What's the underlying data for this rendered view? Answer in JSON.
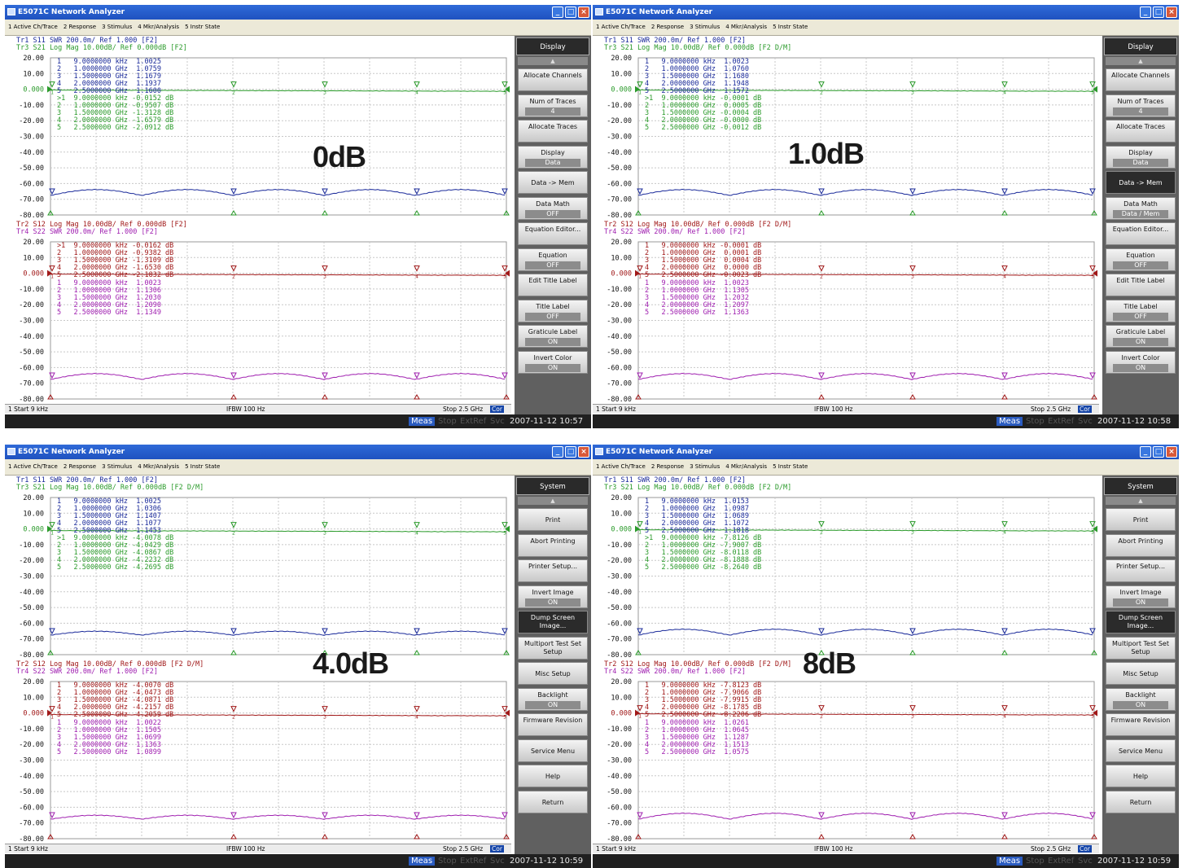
{
  "windows": [
    {
      "id": "w1",
      "title": "E5071C Network Analyzer",
      "menus": [
        "1 Active Ch/Trace",
        "2 Response",
        "3 Stimulus",
        "4 Mkr/Analysis",
        "5 Instr State"
      ],
      "big_label": "0dB",
      "header_top": [
        "Tr1 S11 SWR 200.0m/ Ref 1.000 [F2]",
        "Tr3 S21 Log Mag 10.00dB/ Ref 0.000dB [F2]"
      ],
      "header_bottom": [
        "Tr2 S12 Log Mag 10.00dB/ Ref 0.000dB [F2]",
        "Tr4 S22 SWR 200.0m/ Ref 1.000 [F2]"
      ],
      "y_ticks_top": [
        "20.00",
        "10.00",
        "0.000",
        "-10.00",
        "-20.00",
        "-30.00",
        "-40.00",
        "-50.00",
        "-60.00",
        "-70.00",
        "-80.00"
      ],
      "y_ticks_bottom": [
        "20.00",
        "10.00",
        "0.000",
        "-10.00",
        "-20.00",
        "-30.00",
        "-40.00",
        "-50.00",
        "-60.00",
        "-70.00",
        "-80.00"
      ],
      "markers_top_blue": [
        "1   9.0000000 kHz  1.0025",
        "2   1.0000000 GHz  1.0759",
        "3   1.5000000 GHz  1.1679",
        "4   2.0000000 GHz  1.1937",
        "5   2.5000000 GHz  1.1600"
      ],
      "markers_top_green": [
        ">1  9.0000000 kHz -0.0152 dB",
        "2   1.0000000 GHz -0.9507 dB",
        "3   1.5000000 GHz -1.3128 dB",
        "4   2.0000000 GHz -1.6579 dB",
        "5   2.5000000 GHz -2.0912 dB"
      ],
      "markers_bottom_red": [
        ">1  9.0000000 kHz -0.0162 dB",
        "2   1.0000000 GHz -0.9382 dB",
        "3   1.5000000 GHz -1.3109 dB",
        "4   2.0000000 GHz -1.6530 dB",
        "5   2.5000000 GHz -2.1832 dB"
      ],
      "markers_bottom_magenta": [
        "1   9.0000000 kHz  1.0023",
        "2   1.0000000 GHz  1.1306",
        "3   1.5000000 GHz  1.2030",
        "4   2.0000000 GHz  1.2090",
        "5   2.5000000 GHz  1.1349"
      ],
      "sidebar_title": "Display",
      "sidebar_buttons": [
        {
          "label": "Allocate Channels",
          "value": ""
        },
        {
          "label": "Num of Traces",
          "value": "4"
        },
        {
          "label": "Allocate Traces",
          "value": ""
        },
        {
          "label": "Display",
          "value": "Data"
        },
        {
          "label": "Data -> Mem",
          "value": ""
        },
        {
          "label": "Data Math",
          "value": "OFF"
        },
        {
          "label": "Equation Editor...",
          "value": ""
        },
        {
          "label": "Equation",
          "value": "OFF"
        },
        {
          "label": "Edit Title Label",
          "value": ""
        },
        {
          "label": "Title Label",
          "value": "OFF"
        },
        {
          "label": "Graticule Label",
          "value": "ON"
        },
        {
          "label": "Invert Color",
          "value": "ON"
        }
      ],
      "status": {
        "start": "1  Start 9 kHz",
        "ifbw": "IFBW 100 Hz",
        "stop": "Stop 2.5 GHz",
        "cor": "Cor"
      },
      "bottom": {
        "meas": "Meas",
        "stop": "Stop",
        "extref": "ExtRef",
        "svc": "Svc",
        "datetime": "2007-11-12 10:57"
      },
      "curve": "flat"
    },
    {
      "id": "w2",
      "title": "E5071C Network Analyzer",
      "menus": [
        "1 Active Ch/Trace",
        "2 Response",
        "3 Stimulus",
        "4 Mkr/Analysis",
        "5 Instr State"
      ],
      "big_label": "1.0dB",
      "header_top": [
        "Tr1 S11 SWR 200.0m/ Ref 1.000 [F2]",
        "Tr3 S21 Log Mag 10.00dB/ Ref 0.000dB [F2 D/M]"
      ],
      "header_bottom": [
        "Tr2 S12 Log Mag 10.00dB/ Ref 0.000dB [F2 D/M]",
        "Tr4 S22 SWR 200.0m/ Ref 1.000 [F2]"
      ],
      "y_ticks_top": [
        "20.00",
        "10.00",
        "0.000",
        "-10.00",
        "-20.00",
        "-30.00",
        "-40.00",
        "-50.00",
        "-60.00",
        "-70.00",
        "-80.00"
      ],
      "y_ticks_bottom": [
        "20.00",
        "10.00",
        "0.000",
        "-10.00",
        "-20.00",
        "-30.00",
        "-40.00",
        "-50.00",
        "-60.00",
        "-70.00",
        "-80.00"
      ],
      "markers_top_blue": [
        "1   9.0000000 kHz  1.0023",
        "2   1.0000000 GHz  1.0760",
        "3   1.5000000 GHz  1.1680",
        "4   2.0000000 GHz  1.1948",
        "5   2.5000000 GHz  1.1572"
      ],
      "markers_top_green": [
        ">1  9.0000000 kHz -0.0001 dB",
        "2   1.0000000 GHz  0.0005 dB",
        "3   1.5000000 GHz -0.0004 dB",
        "4   2.0000000 GHz -0.0000 dB",
        "5   2.5000000 GHz -0.0012 dB"
      ],
      "markers_bottom_red": [
        "1   9.0000000 kHz -0.0001 dB",
        "2   1.0000000 GHz  0.0001 dB",
        "3   1.5000000 GHz  0.0004 dB",
        "4   2.0000000 GHz  0.0000 dB",
        "5   2.5000000 GHz -0.0023 dB"
      ],
      "markers_bottom_magenta": [
        "1   9.0000000 kHz  1.0023",
        "2   1.0000000 GHz  1.1305",
        "3   1.5000000 GHz  1.2032",
        "4   2.0000000 GHz  1.2097",
        "5   2.5000000 GHz  1.1363"
      ],
      "sidebar_title": "Display",
      "sidebar_buttons": [
        {
          "label": "Allocate Channels",
          "value": ""
        },
        {
          "label": "Num of Traces",
          "value": "4"
        },
        {
          "label": "Allocate Traces",
          "value": ""
        },
        {
          "label": "Display",
          "value": "Data"
        },
        {
          "label": "Data -> Mem",
          "value": ""
        },
        {
          "label": "Data Math",
          "value": "Data / Mem"
        },
        {
          "label": "Equation Editor...",
          "value": ""
        },
        {
          "label": "Equation",
          "value": "OFF"
        },
        {
          "label": "Edit Title Label",
          "value": ""
        },
        {
          "label": "Title Label",
          "value": "OFF"
        },
        {
          "label": "Graticule Label",
          "value": "ON"
        },
        {
          "label": "Invert Color",
          "value": "ON"
        }
      ],
      "status": {
        "start": "1  Start 9 kHz",
        "ifbw": "IFBW 100 Hz",
        "stop": "Stop 2.5 GHz",
        "cor": "Cor"
      },
      "bottom": {
        "meas": "Meas",
        "stop": "Stop",
        "extref": "ExtRef",
        "svc": "Svc",
        "datetime": "2007-11-12 10:58"
      },
      "curve": "flat"
    },
    {
      "id": "w3",
      "title": "E5071C Network Analyzer",
      "menus": [
        "1 Active Ch/Trace",
        "2 Response",
        "3 Stimulus",
        "4 Mkr/Analysis",
        "5 Instr State"
      ],
      "big_label": "4.0dB",
      "header_top": [
        "Tr1 S11 SWR 200.0m/ Ref 1.000 [F2]",
        "Tr3 S21 Log Mag 10.00dB/ Ref 0.000dB [F2 D/M]"
      ],
      "header_bottom": [
        "Tr2 S12 Log Mag 10.00dB/ Ref 0.000dB [F2 D/M]",
        "Tr4 S22 SWR 200.0m/ Ref 1.000 [F2]"
      ],
      "y_ticks_top": [
        "20.00",
        "10.00",
        "0.000",
        "-10.00",
        "-20.00",
        "-30.00",
        "-40.00",
        "-50.00",
        "-60.00",
        "-70.00",
        "-80.00"
      ],
      "y_ticks_bottom": [
        "20.00",
        "10.00",
        "0.000",
        "-10.00",
        "-20.00",
        "-30.00",
        "-40.00",
        "-50.00",
        "-60.00",
        "-70.00",
        "-80.00"
      ],
      "markers_top_blue": [
        "1   9.0000000 kHz  1.0025",
        "2   1.0000000 GHz  1.0306",
        "3   1.5000000 GHz  1.1407",
        "4   2.0000000 GHz  1.1077",
        "5   2.5000000 GHz  1.1453"
      ],
      "markers_top_green": [
        ">1  9.0000000 kHz -4.0078 dB",
        "2   1.0000000 GHz -4.0429 dB",
        "3   1.5000000 GHz -4.0867 dB",
        "4   2.0000000 GHz -4.2232 dB",
        "5   2.5000000 GHz -4.2695 dB"
      ],
      "markers_bottom_red": [
        "1   9.0000000 kHz -4.0070 dB",
        "2   1.0000000 GHz -4.0473 dB",
        "3   1.5000000 GHz -4.0871 dB",
        "4   2.0000000 GHz -4.2157 dB",
        "5   2.5000000 GHz -4.2059 dB"
      ],
      "markers_bottom_magenta": [
        "1   9.0000000 kHz  1.0022",
        "2   1.0000000 GHz  1.1505",
        "3   1.5000000 GHz  1.0699",
        "4   2.0000000 GHz  1.1363",
        "5   2.5000000 GHz  1.0899"
      ],
      "sidebar_title": "System",
      "sidebar_buttons": [
        {
          "label": "Print",
          "value": ""
        },
        {
          "label": "Abort Printing",
          "value": ""
        },
        {
          "label": "Printer Setup...",
          "value": ""
        },
        {
          "label": "Invert Image",
          "value": "ON"
        },
        {
          "label": "Dump Screen Image...",
          "value": ""
        },
        {
          "label": "Multiport Test Set Setup",
          "value": ""
        },
        {
          "label": "Misc Setup",
          "value": ""
        },
        {
          "label": "Backlight",
          "value": "ON"
        },
        {
          "label": "Firmware Revision",
          "value": ""
        },
        {
          "label": "Service Menu",
          "value": ""
        },
        {
          "label": "Help",
          "value": ""
        },
        {
          "label": "Return",
          "value": ""
        }
      ],
      "status": {
        "start": "1  Start 9 kHz",
        "ifbw": "IFBW 100 Hz",
        "stop": "Stop 2.5 GHz",
        "cor": "Cor"
      },
      "bottom": {
        "meas": "Meas",
        "stop": "Stop",
        "extref": "ExtRef",
        "svc": "Svc",
        "datetime": "2007-11-12 10:59"
      },
      "curve": "sag"
    },
    {
      "id": "w4",
      "title": "E5071C Network Analyzer",
      "menus": [
        "1 Active Ch/Trace",
        "2 Response",
        "3 Stimulus",
        "4 Mkr/Analysis",
        "5 Instr State"
      ],
      "big_label": "8dB",
      "header_top": [
        "Tr1 S11 SWR 200.0m/ Ref 1.000 [F2]",
        "Tr3 S21 Log Mag 10.00dB/ Ref 0.000dB [F2 D/M]"
      ],
      "header_bottom": [
        "Tr2 S12 Log Mag 10.00dB/ Ref 0.000dB [F2 D/M]",
        "Tr4 S22 SWR 200.0m/ Ref 1.000 [F2]"
      ],
      "y_ticks_top": [
        "20.00",
        "10.00",
        "0.000",
        "-10.00",
        "-20.00",
        "-30.00",
        "-40.00",
        "-50.00",
        "-60.00",
        "-70.00",
        "-80.00"
      ],
      "y_ticks_bottom": [
        "20.00",
        "10.00",
        "0.000",
        "-10.00",
        "-20.00",
        "-30.00",
        "-40.00",
        "-50.00",
        "-60.00",
        "-70.00",
        "-80.00"
      ],
      "markers_top_blue": [
        "1   9.0000000 kHz  1.0153",
        "2   1.0000000 GHz  1.0987",
        "3   1.5000000 GHz  1.0689",
        "4   2.0000000 GHz  1.1072",
        "5   2.5000000 GHz  1.1818"
      ],
      "markers_top_green": [
        ">1  9.0000000 kHz -7.8126 dB",
        "2   1.0000000 GHz -7.9007 dB",
        "3   1.5000000 GHz -8.0118 dB",
        "4   2.0000000 GHz -8.1888 dB",
        "5   2.5000000 GHz -8.2640 dB"
      ],
      "markers_bottom_red": [
        "1   9.0000000 kHz -7.8123 dB",
        "2   1.0000000 GHz -7.9066 dB",
        "3   1.5000000 GHz -7.9915 dB",
        "4   2.0000000 GHz -8.1785 dB",
        "5   2.5000000 GHz -8.2206 dB"
      ],
      "markers_bottom_magenta": [
        "1   9.0000000 kHz  1.0261",
        "2   1.0000000 GHz  1.0645",
        "3   1.5000000 GHz  1.1287",
        "4   2.0000000 GHz  1.1513",
        "5   2.5000000 GHz  1.0575"
      ],
      "sidebar_title": "System",
      "sidebar_buttons": [
        {
          "label": "Print",
          "value": ""
        },
        {
          "label": "Abort Printing",
          "value": ""
        },
        {
          "label": "Printer Setup...",
          "value": ""
        },
        {
          "label": "Invert Image",
          "value": "ON"
        },
        {
          "label": "Dump Screen Image...",
          "value": ""
        },
        {
          "label": "Multiport Test Set Setup",
          "value": ""
        },
        {
          "label": "Misc Setup",
          "value": ""
        },
        {
          "label": "Backlight",
          "value": "ON"
        },
        {
          "label": "Firmware Revision",
          "value": ""
        },
        {
          "label": "Service Menu",
          "value": ""
        },
        {
          "label": "Help",
          "value": ""
        },
        {
          "label": "Return",
          "value": ""
        }
      ],
      "status": {
        "start": "1  Start 9 kHz",
        "ifbw": "IFBW 100 Hz",
        "stop": "Stop 2.5 GHz",
        "cor": "Cor"
      },
      "bottom": {
        "meas": "Meas",
        "stop": "Stop",
        "extref": "ExtRef",
        "svc": "Svc",
        "datetime": "2007-11-12 10:59"
      },
      "curve": "flat"
    }
  ],
  "colors": {
    "blue": "#1a2a9a",
    "green": "#2a9a2a",
    "red": "#a01818",
    "magenta": "#a020b0",
    "grid": "#c8c8c8"
  }
}
